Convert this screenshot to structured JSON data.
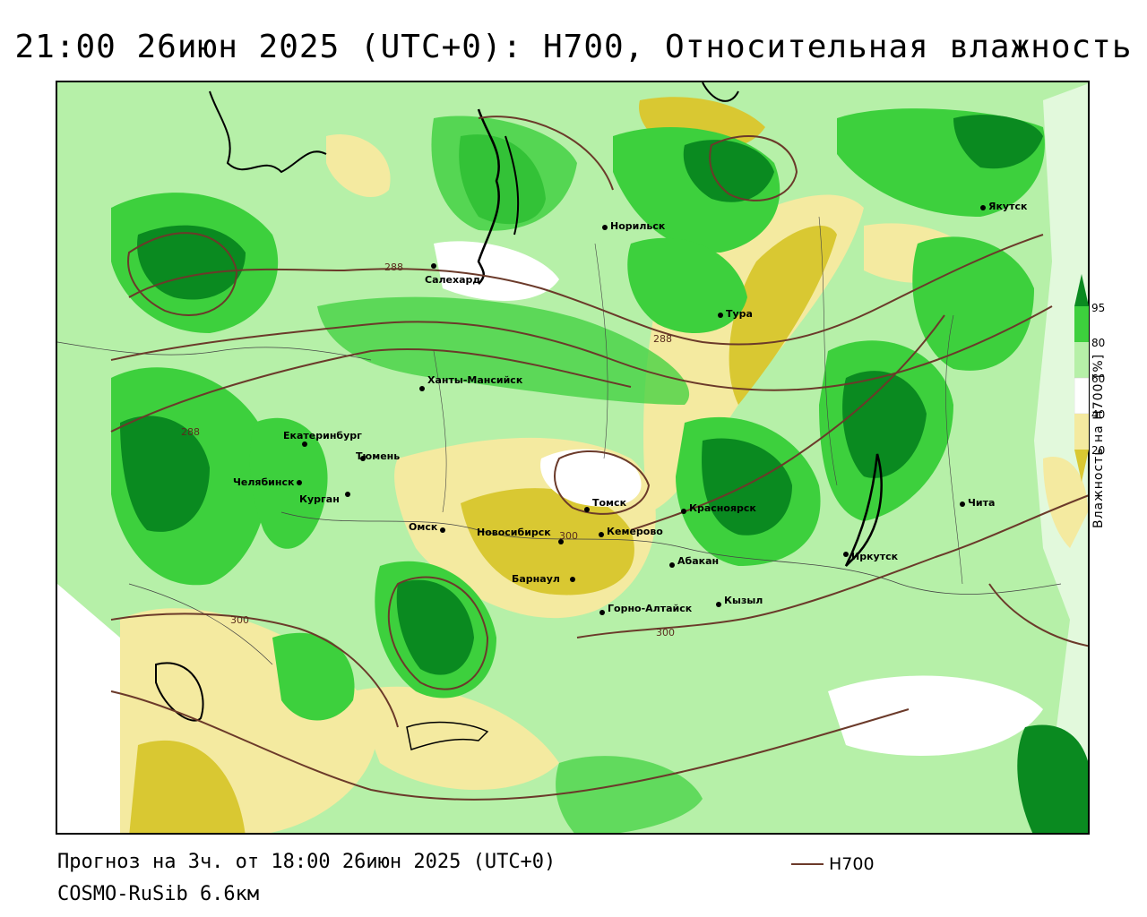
{
  "title": "21:00 26июн 2025 (UTC+0): H700, Относительная влажность",
  "footer": {
    "forecast": "Прогноз на 3ч. от 18:00 26июн 2025 (UTC+0)",
    "model": "COSMO-RuSib 6.6км"
  },
  "legend": {
    "line_label": "H700",
    "line_color": "#6b3a2a"
  },
  "colorbar": {
    "title": "Влажность на H700 [%]",
    "ticks": [
      "95",
      "80",
      "60",
      "40",
      "20"
    ],
    "colors": [
      "#0a8a20",
      "#3dd03d",
      "#b6f0a8",
      "#ffffff",
      "#f4eaa0",
      "#d9c832"
    ]
  },
  "cities": [
    {
      "name": "Якутск"
    },
    {
      "name": "Норильск"
    },
    {
      "name": "Салехард"
    },
    {
      "name": "Тура"
    },
    {
      "name": "Ханты-Мансийск"
    },
    {
      "name": "Екатеринбург"
    },
    {
      "name": "Тюмень"
    },
    {
      "name": "Челябинск"
    },
    {
      "name": "Курган"
    },
    {
      "name": "Томск"
    },
    {
      "name": "Омск"
    },
    {
      "name": "Новосибирск"
    },
    {
      "name": "Кемерово"
    },
    {
      "name": "Красноярск"
    },
    {
      "name": "Барнаул"
    },
    {
      "name": "Абакан"
    },
    {
      "name": "Иркутск"
    },
    {
      "name": "Чита"
    },
    {
      "name": "Кызыл"
    },
    {
      "name": "Горно-Алтайск"
    }
  ],
  "contour_labels": [
    "288",
    "288",
    "288",
    "300",
    "300",
    "300"
  ]
}
